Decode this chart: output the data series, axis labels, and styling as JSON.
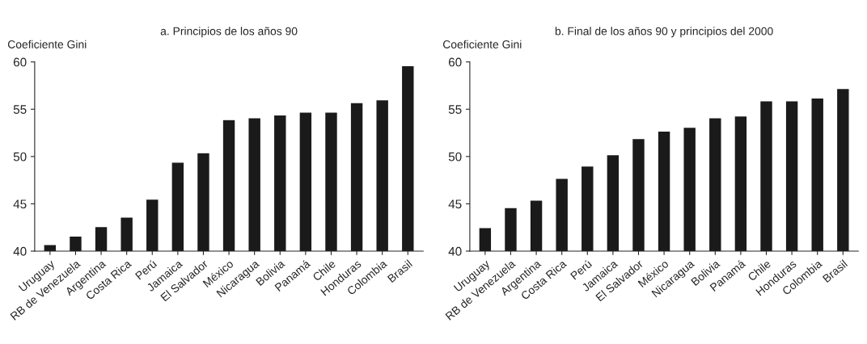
{
  "chart_data": [
    {
      "type": "bar",
      "title": "a. Principios de los años 90",
      "ylabel": "Coeficiente Gini",
      "categories": [
        "Uruguay",
        "RB de Venezuela",
        "Argentina",
        "Costa Rica",
        "Perú",
        "Jamaica",
        "El Salvador",
        "México",
        "Nicaragua",
        "Bolivia",
        "Panamá",
        "Chile",
        "Honduras",
        "Colombia",
        "Brasil"
      ],
      "values": [
        40.7,
        41.6,
        42.6,
        43.6,
        45.5,
        49.4,
        50.4,
        53.9,
        54.1,
        54.4,
        54.7,
        54.7,
        55.7,
        56.0,
        59.6
      ],
      "color": "#1a1a1a",
      "ylim": [
        40,
        60
      ],
      "yticks": [
        40,
        45,
        50,
        55,
        60
      ],
      "grid": false
    },
    {
      "type": "bar",
      "title": "b. Final de los años 90 y principios del 2000",
      "ylabel": "Coeficiente Gini",
      "categories": [
        "Uruguay",
        "RB de Venezuela",
        "Argentina",
        "Costa Rica",
        "Perú",
        "Jamaica",
        "El Salvador",
        "México",
        "Nicaragua",
        "Bolivia",
        "Panamá",
        "Chile",
        "Honduras",
        "Colombia",
        "Brasil"
      ],
      "values": [
        42.5,
        44.6,
        45.4,
        47.7,
        49.0,
        50.2,
        51.9,
        52.7,
        53.1,
        54.1,
        54.3,
        55.9,
        55.9,
        56.2,
        57.2
      ],
      "color": "#1a1a1a",
      "ylim": [
        40,
        60
      ],
      "yticks": [
        40,
        45,
        50,
        55,
        60
      ],
      "grid": false
    }
  ]
}
